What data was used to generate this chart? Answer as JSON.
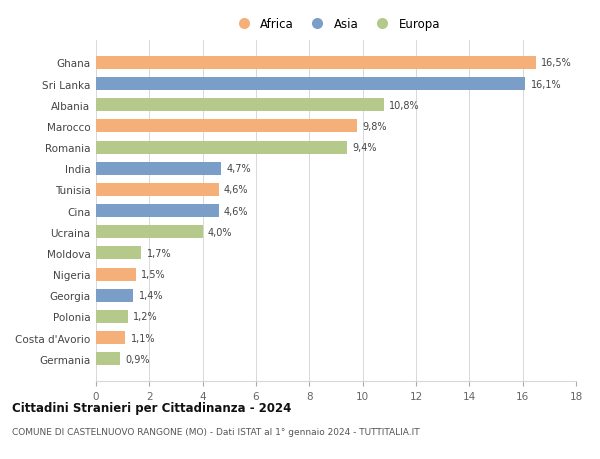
{
  "categories": [
    "Ghana",
    "Sri Lanka",
    "Albania",
    "Marocco",
    "Romania",
    "India",
    "Tunisia",
    "Cina",
    "Ucraina",
    "Moldova",
    "Nigeria",
    "Georgia",
    "Polonia",
    "Costa d'Avorio",
    "Germania"
  ],
  "values": [
    16.5,
    16.1,
    10.8,
    9.8,
    9.4,
    4.7,
    4.6,
    4.6,
    4.0,
    1.7,
    1.5,
    1.4,
    1.2,
    1.1,
    0.9
  ],
  "labels": [
    "16,5%",
    "16,1%",
    "10,8%",
    "9,8%",
    "9,4%",
    "4,7%",
    "4,6%",
    "4,6%",
    "4,0%",
    "1,7%",
    "1,5%",
    "1,4%",
    "1,2%",
    "1,1%",
    "0,9%"
  ],
  "continents": [
    "Africa",
    "Asia",
    "Europa",
    "Africa",
    "Europa",
    "Asia",
    "Africa",
    "Asia",
    "Europa",
    "Europa",
    "Africa",
    "Asia",
    "Europa",
    "Africa",
    "Europa"
  ],
  "colors": {
    "Africa": "#F5B07A",
    "Asia": "#7B9EC9",
    "Europa": "#B5C98A"
  },
  "bar_height": 0.62,
  "xlim": [
    0,
    18
  ],
  "xticks": [
    0,
    2,
    4,
    6,
    8,
    10,
    12,
    14,
    16,
    18
  ],
  "title": "Cittadini Stranieri per Cittadinanza - 2024",
  "subtitle": "COMUNE DI CASTELNUOVO RANGONE (MO) - Dati ISTAT al 1° gennaio 2024 - TUTTITALIA.IT",
  "background_color": "#ffffff",
  "grid_color": "#d8d8d8",
  "legend_labels": [
    "Africa",
    "Asia",
    "Europa"
  ]
}
